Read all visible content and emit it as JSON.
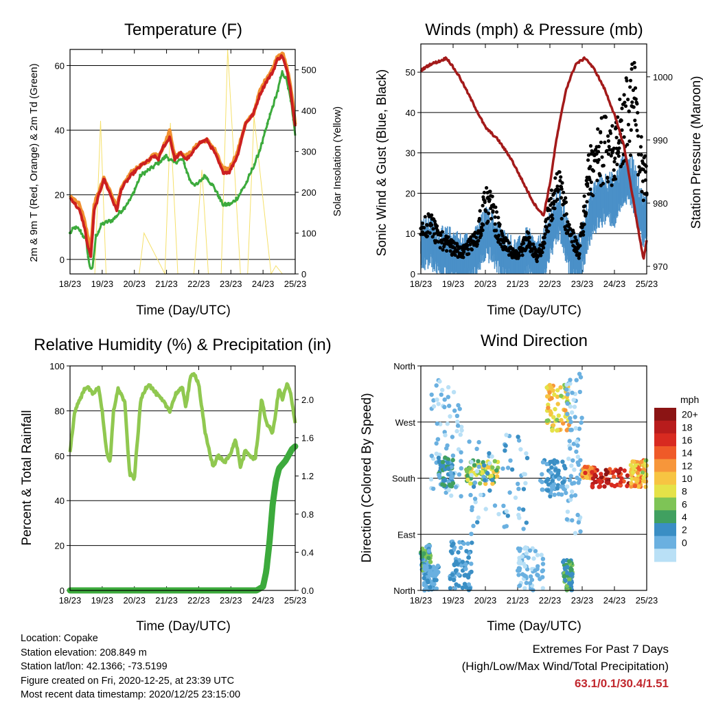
{
  "chart_data": [
    {
      "type": "line",
      "title": "Temperature (F)",
      "xlabel": "Time (Day/UTC)",
      "ylabel": "2m & 9m T (Red, Orange) & 2m Td (Green)",
      "ylabel_right": "Solar Insolation (Yellow)",
      "x_ticks": [
        "18/23",
        "19/23",
        "20/23",
        "21/23",
        "22/23",
        "23/23",
        "24/23",
        "25/23"
      ],
      "y_ticks": [
        0,
        20,
        40,
        60
      ],
      "y_ticks_right": [
        0,
        100,
        200,
        300,
        400,
        500
      ],
      "ylim": [
        -4.5,
        65
      ],
      "ylim_right": [
        0,
        550
      ],
      "grid": true,
      "colors": {
        "t2m": "#cc2020",
        "t9m": "#f09030",
        "td": "#3caa3c",
        "solar": "#f5e06a"
      },
      "series": [
        {
          "key": "t2m",
          "x": [
            0,
            0.1,
            0.3,
            0.45,
            0.55,
            0.65,
            0.75,
            1.05,
            1.3,
            1.45,
            1.6,
            1.9,
            2.2,
            2.5,
            2.6,
            2.75,
            2.9,
            3.0,
            3.1,
            3.25,
            3.45,
            3.6,
            3.75,
            4.0,
            4.25,
            4.5,
            4.75,
            4.95,
            5.2,
            5.45,
            5.7,
            5.9,
            6.1,
            6.3,
            6.45,
            6.6,
            6.75,
            6.85,
            7.0
          ],
          "y": [
            19,
            18,
            15,
            10,
            4,
            1,
            15,
            25,
            19,
            15,
            22,
            26,
            29,
            31,
            32,
            31,
            35,
            36,
            38,
            31,
            33,
            31,
            32,
            36,
            37,
            33,
            27,
            27,
            32,
            42,
            45,
            51,
            55,
            58,
            62,
            63,
            58,
            53,
            41
          ]
        },
        {
          "key": "t9m",
          "x": [
            0,
            0.1,
            0.3,
            0.45,
            0.55,
            0.65,
            0.75,
            1.05,
            1.3,
            1.45,
            1.6,
            1.9,
            2.2,
            2.5,
            2.6,
            2.75,
            2.9,
            3.0,
            3.1,
            3.25,
            3.45,
            3.6,
            3.75,
            4.0,
            4.25,
            4.5,
            4.75,
            4.95,
            5.2,
            5.45,
            5.7,
            5.9,
            6.1,
            6.3,
            6.45,
            6.6,
            6.75,
            6.85,
            7.0
          ],
          "y": [
            20,
            19,
            17,
            12,
            7,
            3,
            17,
            25,
            20,
            16,
            22,
            27,
            29,
            31,
            33,
            32,
            35,
            37,
            40,
            32,
            33,
            32,
            33,
            36,
            37,
            34,
            28,
            28,
            33,
            42,
            45,
            52,
            56,
            59,
            63,
            64,
            59,
            54,
            42
          ]
        },
        {
          "key": "td",
          "x": [
            0,
            0.15,
            0.3,
            0.5,
            0.6,
            0.7,
            0.8,
            1.0,
            1.3,
            1.6,
            1.9,
            2.2,
            2.5,
            2.75,
            3.0,
            3.2,
            3.5,
            3.75,
            3.95,
            4.2,
            4.5,
            4.75,
            5.0,
            5.2,
            5.5,
            5.8,
            6.0,
            6.2,
            6.45,
            6.6,
            6.75,
            6.9,
            7.0
          ],
          "y": [
            8,
            10,
            9,
            6,
            -2,
            -3,
            7,
            11,
            12,
            15,
            19,
            26,
            28,
            30,
            32,
            30,
            31,
            24,
            23,
            26,
            22,
            17,
            17,
            19,
            24,
            31,
            37,
            44,
            52,
            58,
            55,
            47,
            38
          ]
        },
        {
          "key": "solar",
          "type": "spikes",
          "x": [
            0.77,
            0.95,
            1.12,
            2.15,
            2.3,
            2.95,
            3.12,
            3.35,
            3.85,
            4.1,
            4.3,
            4.7,
            4.9,
            5.3,
            5.52,
            5.72,
            6.25,
            6.4,
            6.6
          ],
          "y": [
            0,
            375,
            0,
            0,
            100,
            0,
            370,
            0,
            0,
            255,
            0,
            0,
            550,
            0,
            0,
            385,
            0,
            20,
            0
          ]
        }
      ]
    },
    {
      "type": "line",
      "title": "Winds (mph) & Pressure (mb)",
      "xlabel": "Time (Day/UTC)",
      "ylabel": "Sonic Wind & Gust (Blue, Black)",
      "ylabel_right": "Station Pressure (Maroon)",
      "x_ticks": [
        "18/23",
        "19/23",
        "20/23",
        "21/23",
        "22/23",
        "23/23",
        "24/23",
        "25/23"
      ],
      "y_ticks": [
        0,
        10,
        20,
        30,
        40,
        50
      ],
      "y_ticks_right": [
        970,
        980,
        990,
        1000
      ],
      "ylim": [
        0,
        57
      ],
      "ylim_right": [
        968.8,
        1005.2
      ],
      "grid": true,
      "colors": {
        "wind": "#4a90c8",
        "gust": "#000000",
        "pressure": "#a31a1a"
      },
      "series": [
        {
          "key": "wind",
          "x": [
            0,
            0.3,
            0.6,
            1.0,
            1.3,
            1.7,
            2.0,
            2.2,
            2.5,
            2.8,
            3.0,
            3.3,
            3.6,
            3.8,
            4.0,
            4.3,
            4.6,
            4.9,
            5.2,
            5.5,
            5.8,
            6.0,
            6.3,
            6.6,
            6.9,
            7.0
          ],
          "y": [
            7,
            8,
            5,
            5,
            3,
            5,
            10,
            9,
            5,
            3,
            2,
            5,
            2,
            4,
            10,
            15,
            6,
            3,
            13,
            18,
            19,
            18,
            24,
            22,
            13,
            14
          ]
        },
        {
          "key": "gust",
          "x": [
            0,
            0.3,
            0.6,
            1.0,
            1.3,
            1.7,
            2.0,
            2.2,
            2.5,
            2.8,
            3.0,
            3.3,
            3.6,
            3.8,
            4.0,
            4.3,
            4.6,
            4.9,
            5.2,
            5.5,
            5.8,
            6.0,
            6.3,
            6.6,
            6.9,
            7.0
          ],
          "y": [
            10,
            12,
            8,
            6,
            5,
            8,
            16,
            15,
            8,
            5,
            4,
            8,
            4,
            7,
            15,
            20,
            10,
            5,
            22,
            28,
            30,
            28,
            35,
            40,
            22,
            22
          ]
        },
        {
          "key": "pressure",
          "x": [
            0,
            0.3,
            0.6,
            0.8,
            1.2,
            1.6,
            2.0,
            2.4,
            2.8,
            3.2,
            3.5,
            3.8,
            4.0,
            4.2,
            4.5,
            4.8,
            5.1,
            5.4,
            5.7,
            6.0,
            6.3,
            6.6,
            6.8,
            6.9,
            7.0
          ],
          "y": [
            1001,
            1002,
            1002.5,
            1003,
            1000,
            996,
            992,
            990,
            987,
            983,
            980,
            978,
            983,
            990,
            998,
            1002,
            1003,
            1001,
            998,
            994,
            989,
            980,
            974,
            971,
            974
          ]
        }
      ]
    },
    {
      "type": "line",
      "title": "Relative Humidity (%) & Precipitation (in)",
      "xlabel": "Time (Day/UTC)",
      "ylabel": "Percent & Total Rainfall",
      "x_ticks": [
        "18/23",
        "19/23",
        "20/23",
        "21/23",
        "22/23",
        "23/23",
        "24/23",
        "25/23"
      ],
      "y_ticks": [
        0,
        20,
        40,
        60,
        80,
        100
      ],
      "y_ticks_right": [
        "0.0",
        "0.4",
        "0.8",
        "1.2",
        "1.6",
        "2.0"
      ],
      "ylim": [
        0,
        100
      ],
      "ylim_right": [
        0,
        2.353
      ],
      "grid": true,
      "colors": {
        "rh": "#90c850",
        "precip": "#3caa3c"
      },
      "series": [
        {
          "key": "rh",
          "x": [
            0,
            0.15,
            0.3,
            0.5,
            0.7,
            0.9,
            1.0,
            1.15,
            1.25,
            1.35,
            1.5,
            1.7,
            1.85,
            2.0,
            2.2,
            2.35,
            2.45,
            2.6,
            2.9,
            3.1,
            3.3,
            3.5,
            3.6,
            3.75,
            3.85,
            4.0,
            4.2,
            4.45,
            4.6,
            4.8,
            4.95,
            5.15,
            5.3,
            5.45,
            5.6,
            5.75,
            5.85,
            5.95,
            6.1,
            6.3,
            6.5,
            6.6,
            6.75,
            6.85,
            7.0
          ],
          "y": [
            62,
            80,
            85,
            91,
            88,
            90,
            80,
            60,
            57,
            80,
            90,
            84,
            52,
            50,
            85,
            90,
            92,
            89,
            84,
            80,
            88,
            90,
            82,
            95,
            97,
            92,
            70,
            55,
            60,
            57,
            60,
            67,
            55,
            62,
            60,
            58,
            70,
            85,
            75,
            70,
            90,
            85,
            92,
            88,
            75
          ]
        },
        {
          "key": "precip",
          "x": [
            0,
            1,
            2,
            3,
            4,
            5,
            5.8,
            6.0,
            6.1,
            6.2,
            6.3,
            6.4,
            6.5,
            6.6,
            6.7,
            6.8,
            6.9,
            7.0
          ],
          "y": [
            0,
            0,
            0,
            0,
            0,
            0,
            0,
            0.04,
            0.2,
            0.5,
            0.9,
            1.15,
            1.28,
            1.32,
            1.36,
            1.42,
            1.48,
            1.51
          ]
        }
      ]
    },
    {
      "type": "scatter",
      "title": "Wind Direction",
      "xlabel": "Time (Day/UTC)",
      "ylabel": "Direction (Colored By Speed)",
      "x_ticks": [
        "18/23",
        "19/23",
        "20/23",
        "21/23",
        "22/23",
        "23/23",
        "24/23",
        "25/23"
      ],
      "y_ticks": [
        "North",
        "East",
        "South",
        "West",
        "North"
      ],
      "ylim": [
        0,
        360
      ],
      "grid": true,
      "legend": {
        "title": "mph",
        "labels": [
          "20+",
          "18",
          "16",
          "14",
          "12",
          "10",
          "8",
          "6",
          "4",
          "2",
          "0"
        ],
        "colors": [
          "#8b1414",
          "#b81c1c",
          "#d82a20",
          "#ef5a28",
          "#f7963a",
          "#f7c442",
          "#e5e248",
          "#7ec456",
          "#40a060",
          "#3a8ec4",
          "#6ab0e0",
          "#b9e0f6"
        ]
      },
      "clusters": [
        {
          "t": [
            0,
            0.3
          ],
          "dir": [
            30,
            75
          ],
          "speed": [
            2,
            8
          ]
        },
        {
          "t": [
            0.1,
            0.55
          ],
          "dir": [
            0,
            40
          ],
          "speed": [
            1,
            4
          ]
        },
        {
          "t": [
            0.3,
            1.3
          ],
          "dir": [
            150,
            340
          ],
          "speed": [
            0,
            2
          ]
        },
        {
          "t": [
            0.55,
            1.0
          ],
          "dir": [
            165,
            215
          ],
          "speed": [
            2,
            6
          ]
        },
        {
          "t": [
            0.9,
            1.6
          ],
          "dir": [
            0,
            80
          ],
          "speed": [
            1,
            5
          ]
        },
        {
          "t": [
            1.4,
            2.4
          ],
          "dir": [
            170,
            210
          ],
          "speed": [
            6,
            12
          ]
        },
        {
          "t": [
            1.5,
            3.3
          ],
          "dir": [
            90,
            250
          ],
          "speed": [
            0,
            4
          ]
        },
        {
          "t": [
            3.0,
            3.8
          ],
          "dir": [
            0,
            70
          ],
          "speed": [
            0,
            3
          ]
        },
        {
          "t": [
            3.7,
            4.5
          ],
          "dir": [
            150,
            210
          ],
          "speed": [
            1,
            5
          ]
        },
        {
          "t": [
            3.9,
            4.6
          ],
          "dir": [
            255,
            330
          ],
          "speed": [
            8,
            14
          ]
        },
        {
          "t": [
            4.4,
            4.7
          ],
          "dir": [
            0,
            50
          ],
          "speed": [
            3,
            8
          ]
        },
        {
          "t": [
            4.5,
            5.0
          ],
          "dir": [
            90,
            350
          ],
          "speed": [
            0,
            3
          ]
        },
        {
          "t": [
            5.0,
            5.4
          ],
          "dir": [
            180,
            200
          ],
          "speed": [
            12,
            18
          ]
        },
        {
          "t": [
            5.3,
            6.6
          ],
          "dir": [
            165,
            195
          ],
          "speed": [
            16,
            22
          ]
        },
        {
          "t": [
            6.5,
            7.0
          ],
          "dir": [
            165,
            210
          ],
          "speed": [
            8,
            16
          ]
        }
      ]
    }
  ],
  "info": {
    "location": "Location: Copake",
    "elevation": "Station elevation: 208.849 m",
    "latlon": "Station lat/lon: 42.1366; -73.5199",
    "created": "Figure created on Fri, 2020-12-25, at 23:39 UTC",
    "recent": "Most recent data timestamp: 2020/12/25 23:15:00"
  },
  "extremes": {
    "heading": "Extremes For Past 7 Days",
    "subheading": "(High/Low/Max Wind/Total Precipitation)",
    "values": "63.1/0.1/30.4/1.51"
  }
}
